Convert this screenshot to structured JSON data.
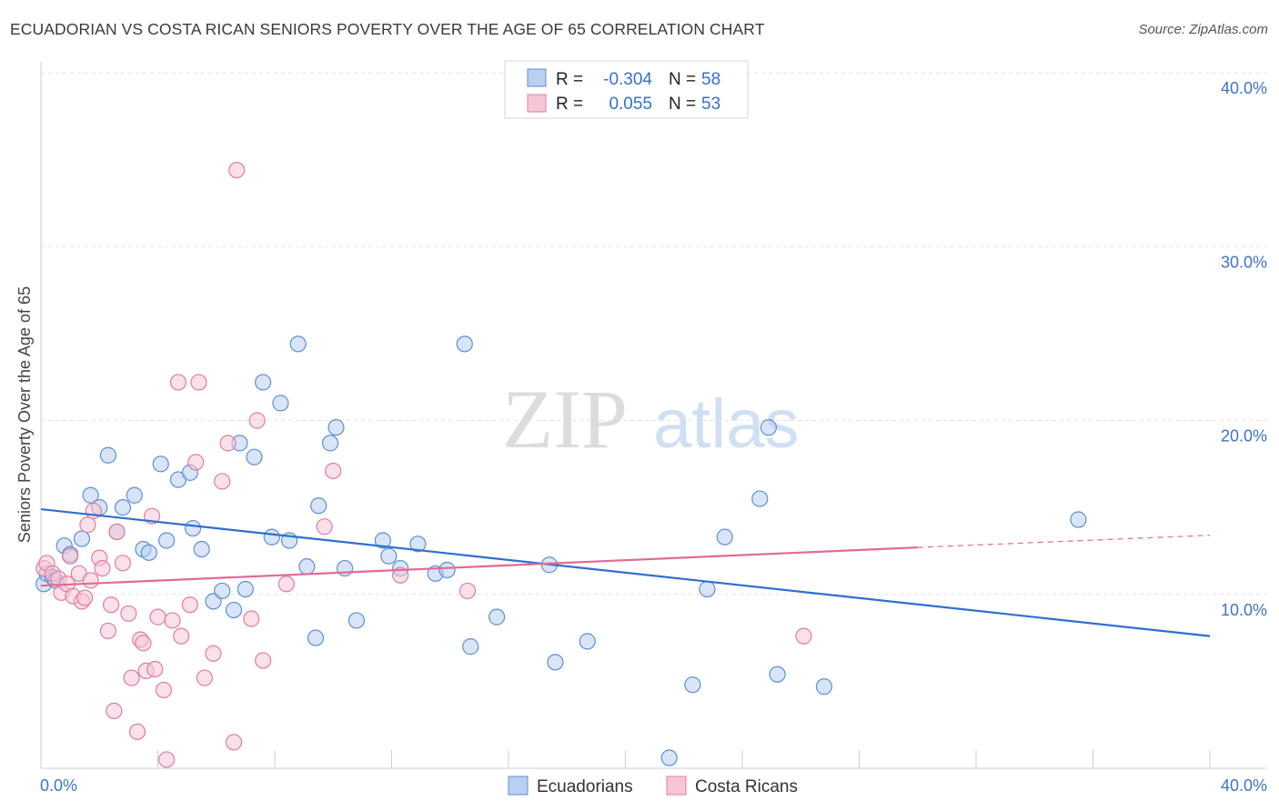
{
  "title": "ECUADORIAN VS COSTA RICAN SENIORS POVERTY OVER THE AGE OF 65 CORRELATION CHART",
  "source": "Source: ZipAtlas.com",
  "watermark": {
    "zip": "ZIP",
    "atlas": "atlas"
  },
  "colors": {
    "blue": "#5b8fd6",
    "blue_fill": "#b9d0f0",
    "pink": "#e07da0",
    "pink_fill": "#f6c6d6",
    "blue_line": "#2e6fd0",
    "pink_line": "#e06a96",
    "axis_text": "#3f73c8"
  },
  "chart_data": {
    "type": "scatter",
    "xlabel": "",
    "ylabel": "Seniors Poverty Over the Age of 65",
    "xlim": [
      0,
      40
    ],
    "ylim": [
      0,
      40
    ],
    "x_ticks": [
      "0.0%",
      "40.0%"
    ],
    "y_ticks": [
      {
        "value": 10,
        "label": "10.0%"
      },
      {
        "value": 20,
        "label": "20.0%"
      },
      {
        "value": 30,
        "label": "30.0%"
      },
      {
        "value": 40,
        "label": "40.0%"
      }
    ],
    "grid": true,
    "legend": {
      "position": "top-center",
      "rows": [
        {
          "r_label": "R = ",
          "r_value": "-0.304",
          "n_label": "N = ",
          "n_value": "58"
        },
        {
          "r_label": "R = ",
          "r_value": "0.055",
          "n_label": "N = ",
          "n_value": "53"
        }
      ]
    },
    "series": [
      {
        "name": "Ecuadorians",
        "color": "#5b8fd6",
        "trend": {
          "x0": 0,
          "y0": 14.9,
          "x1": 40,
          "y1": 7.6
        },
        "points": [
          [
            0.1,
            10.6
          ],
          [
            0.2,
            11.2
          ],
          [
            0.4,
            11.0
          ],
          [
            0.5,
            10.8
          ],
          [
            0.8,
            12.8
          ],
          [
            1.0,
            12.3
          ],
          [
            1.4,
            13.2
          ],
          [
            1.7,
            15.7
          ],
          [
            2.0,
            15.0
          ],
          [
            2.3,
            18.0
          ],
          [
            2.6,
            13.6
          ],
          [
            2.8,
            15.0
          ],
          [
            3.2,
            15.7
          ],
          [
            3.5,
            12.6
          ],
          [
            3.7,
            12.4
          ],
          [
            4.1,
            17.5
          ],
          [
            4.3,
            13.1
          ],
          [
            4.7,
            16.6
          ],
          [
            5.1,
            17.0
          ],
          [
            5.2,
            13.8
          ],
          [
            5.5,
            12.6
          ],
          [
            5.9,
            9.6
          ],
          [
            6.2,
            10.2
          ],
          [
            6.6,
            9.1
          ],
          [
            6.8,
            18.7
          ],
          [
            7.0,
            10.3
          ],
          [
            7.3,
            17.9
          ],
          [
            7.6,
            22.2
          ],
          [
            7.9,
            13.3
          ],
          [
            8.2,
            21.0
          ],
          [
            8.5,
            13.1
          ],
          [
            8.8,
            24.4
          ],
          [
            9.1,
            11.6
          ],
          [
            9.4,
            7.5
          ],
          [
            9.5,
            15.1
          ],
          [
            9.9,
            18.7
          ],
          [
            10.1,
            19.6
          ],
          [
            10.4,
            11.5
          ],
          [
            10.8,
            8.5
          ],
          [
            11.7,
            13.1
          ],
          [
            11.9,
            12.2
          ],
          [
            12.3,
            11.5
          ],
          [
            12.9,
            12.9
          ],
          [
            13.5,
            11.2
          ],
          [
            13.9,
            11.4
          ],
          [
            14.5,
            24.4
          ],
          [
            14.7,
            7.0
          ],
          [
            15.6,
            8.7
          ],
          [
            17.4,
            11.7
          ],
          [
            17.6,
            6.1
          ],
          [
            18.7,
            7.3
          ],
          [
            21.5,
            0.6
          ],
          [
            22.3,
            4.8
          ],
          [
            22.8,
            10.3
          ],
          [
            23.4,
            13.3
          ],
          [
            24.6,
            15.5
          ],
          [
            24.9,
            19.6
          ],
          [
            25.2,
            5.4
          ],
          [
            26.8,
            4.7
          ],
          [
            35.5,
            14.3
          ]
        ]
      },
      {
        "name": "Costa Ricans",
        "color": "#e07da0",
        "trend": {
          "x0": 0,
          "y0": 10.5,
          "x1": 30,
          "y1": 12.7,
          "dash_x1": 40,
          "dash_y1": 13.4
        },
        "points": [
          [
            0.1,
            11.5
          ],
          [
            0.2,
            11.8
          ],
          [
            0.4,
            11.2
          ],
          [
            0.6,
            10.9
          ],
          [
            0.7,
            10.1
          ],
          [
            0.9,
            10.6
          ],
          [
            1.0,
            12.2
          ],
          [
            1.1,
            9.9
          ],
          [
            1.3,
            11.2
          ],
          [
            1.4,
            9.6
          ],
          [
            1.5,
            9.8
          ],
          [
            1.6,
            14.0
          ],
          [
            1.7,
            10.8
          ],
          [
            1.8,
            14.8
          ],
          [
            2.0,
            12.1
          ],
          [
            2.1,
            11.5
          ],
          [
            2.3,
            7.9
          ],
          [
            2.4,
            9.4
          ],
          [
            2.5,
            3.3
          ],
          [
            2.6,
            13.6
          ],
          [
            2.8,
            11.8
          ],
          [
            3.0,
            8.9
          ],
          [
            3.1,
            5.2
          ],
          [
            3.3,
            2.1
          ],
          [
            3.4,
            7.4
          ],
          [
            3.5,
            7.2
          ],
          [
            3.6,
            5.6
          ],
          [
            3.8,
            14.5
          ],
          [
            3.9,
            5.7
          ],
          [
            4.0,
            8.7
          ],
          [
            4.2,
            4.5
          ],
          [
            4.3,
            0.5
          ],
          [
            4.5,
            8.5
          ],
          [
            4.7,
            22.2
          ],
          [
            4.8,
            7.6
          ],
          [
            5.1,
            9.4
          ],
          [
            5.3,
            17.6
          ],
          [
            5.4,
            22.2
          ],
          [
            5.6,
            5.2
          ],
          [
            5.9,
            6.6
          ],
          [
            6.2,
            16.5
          ],
          [
            6.4,
            18.7
          ],
          [
            6.6,
            1.5
          ],
          [
            6.7,
            34.4
          ],
          [
            7.2,
            8.6
          ],
          [
            7.4,
            20.0
          ],
          [
            7.6,
            6.2
          ],
          [
            8.4,
            10.6
          ],
          [
            9.7,
            13.9
          ],
          [
            10.0,
            17.1
          ],
          [
            12.3,
            11.1
          ],
          [
            14.6,
            10.2
          ],
          [
            26.1,
            7.6
          ]
        ]
      }
    ]
  }
}
